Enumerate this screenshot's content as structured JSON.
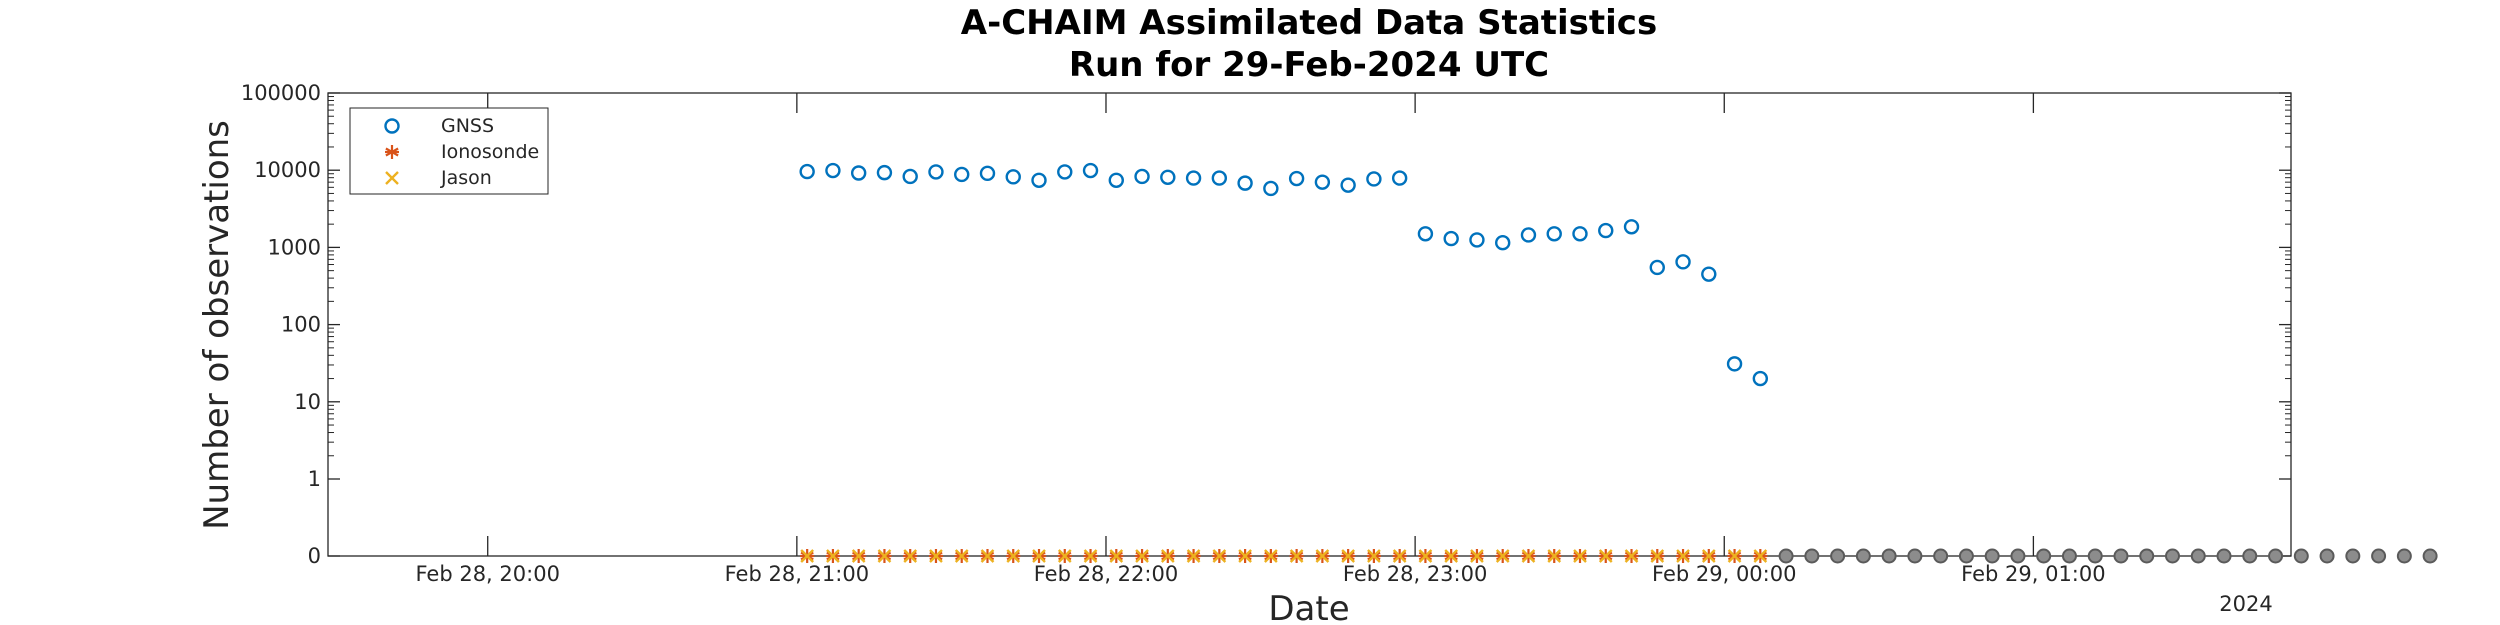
{
  "chart_data": {
    "type": "scatter",
    "title_line1": "A-CHAIM Assimilated Data Statistics",
    "title_line2": "Run for 29-Feb-2024 UTC",
    "xlabel": "Date",
    "ylabel": "Number of observations",
    "x_year_label": "2024",
    "y_scale": "log",
    "y_ticks": [
      {
        "value": 0,
        "label": "0"
      },
      {
        "value": 1,
        "label": "1"
      },
      {
        "value": 10,
        "label": "10"
      },
      {
        "value": 100,
        "label": "100"
      },
      {
        "value": 1000,
        "label": "1000"
      },
      {
        "value": 10000,
        "label": "10000"
      },
      {
        "value": 100000,
        "label": "100000"
      }
    ],
    "x_range": [
      "2024-02-28 19:29",
      "2024-02-29 01:50"
    ],
    "x_ticks": [
      {
        "value": "2024-02-28 20:00",
        "label": "Feb 28, 20:00"
      },
      {
        "value": "2024-02-28 21:00",
        "label": "Feb 28, 21:00"
      },
      {
        "value": "2024-02-28 22:00",
        "label": "Feb 28, 22:00"
      },
      {
        "value": "2024-02-28 23:00",
        "label": "Feb 28, 23:00"
      },
      {
        "value": "2024-02-29 00:00",
        "label": "Feb 29, 00:00"
      },
      {
        "value": "2024-02-29 01:00",
        "label": "Feb 29, 01:00"
      }
    ],
    "legend": {
      "position": "top-left"
    },
    "grid": false,
    "series": [
      {
        "name": "GNSS",
        "marker": "circle",
        "color": "#0072BD",
        "x_start": "2024-02-28 21:02",
        "x_step_minutes": 5,
        "values": [
          9600,
          9900,
          9200,
          9300,
          8300,
          9500,
          8800,
          9100,
          8200,
          7400,
          9500,
          9900,
          7400,
          8300,
          8100,
          7900,
          7900,
          6800,
          5800,
          7800,
          7000,
          6400,
          7700,
          7900,
          1500,
          1300,
          1250,
          1150,
          1450,
          1500,
          1500,
          1650,
          1850,
          550,
          650,
          450,
          31,
          20,
          0,
          0,
          0,
          0,
          0,
          0,
          0,
          0,
          0,
          0,
          0,
          0,
          0,
          0,
          0,
          0,
          0,
          0,
          0,
          0,
          0,
          0,
          0,
          0,
          0,
          0
        ]
      },
      {
        "name": "Ionosonde",
        "marker": "asterisk",
        "color": "#D95319",
        "x_start": "2024-02-28 21:02",
        "x_step_minutes": 5,
        "values": [
          0,
          0,
          0,
          0,
          0,
          0,
          0,
          0,
          0,
          0,
          0,
          0,
          0,
          0,
          0,
          0,
          0,
          0,
          0,
          0,
          0,
          0,
          0,
          0,
          0,
          0,
          0,
          0,
          0,
          0,
          0,
          0,
          0,
          0,
          0,
          0,
          0,
          0,
          0,
          0,
          0,
          0,
          0,
          0,
          0,
          0,
          0,
          0,
          0,
          0,
          0,
          0,
          0,
          0,
          0,
          0,
          0,
          0,
          0,
          0,
          0,
          0,
          0,
          0
        ]
      },
      {
        "name": "Jason",
        "marker": "cross",
        "color": "#EDB120",
        "x_start": "2024-02-28 21:02",
        "x_step_minutes": 5,
        "values": [
          0,
          0,
          0,
          0,
          0,
          0,
          0,
          0,
          0,
          0,
          0,
          0,
          0,
          0,
          0,
          0,
          0,
          0,
          0,
          0,
          0,
          0,
          0,
          0,
          0,
          0,
          0,
          0,
          0,
          0,
          0,
          0,
          0,
          0,
          0,
          0,
          0,
          0
        ]
      }
    ]
  }
}
